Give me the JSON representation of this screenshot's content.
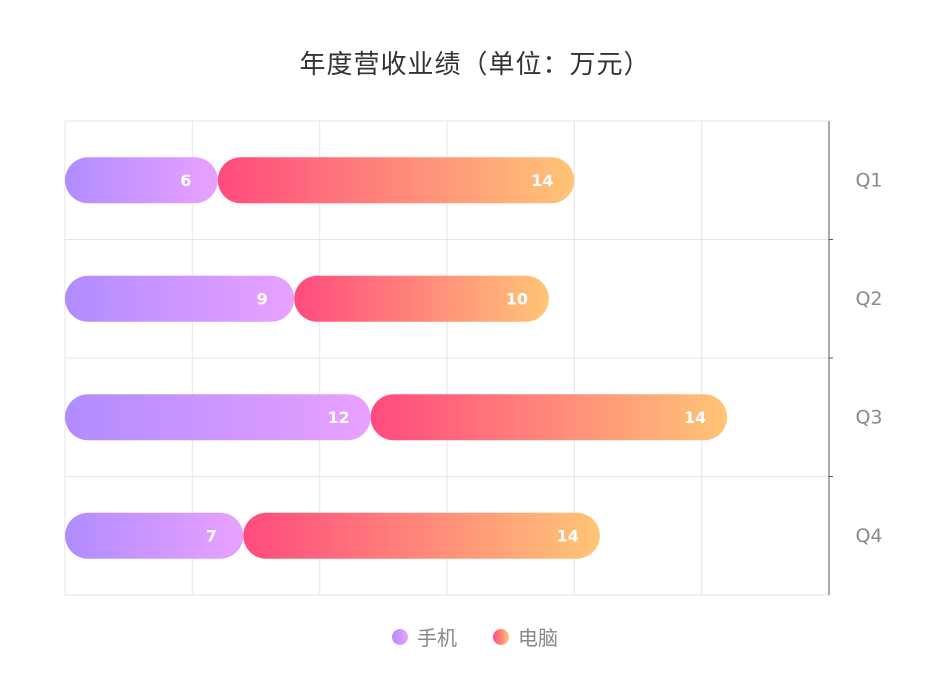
{
  "chart_data": {
    "type": "bar",
    "orientation": "horizontal",
    "stacked": true,
    "title": "年度营收业绩（单位：万元）",
    "categories": [
      "Q1",
      "Q2",
      "Q3",
      "Q4"
    ],
    "series": [
      {
        "name": "手机",
        "values": [
          6,
          9,
          12,
          7
        ],
        "gradient": [
          "#b18cff",
          "#e9a1ff"
        ]
      },
      {
        "name": "电脑",
        "values": [
          14,
          10,
          14,
          14
        ],
        "gradient": [
          "#ff4a7e",
          "#ffc576"
        ]
      }
    ],
    "xlim": [
      0,
      30
    ],
    "grid": true,
    "category_axis_position": "right",
    "legend_position": "bottom",
    "data_labels": true
  },
  "colors": {
    "grid": "#e6e6e6",
    "axis": "#555555",
    "label_text": "#ffffff"
  }
}
